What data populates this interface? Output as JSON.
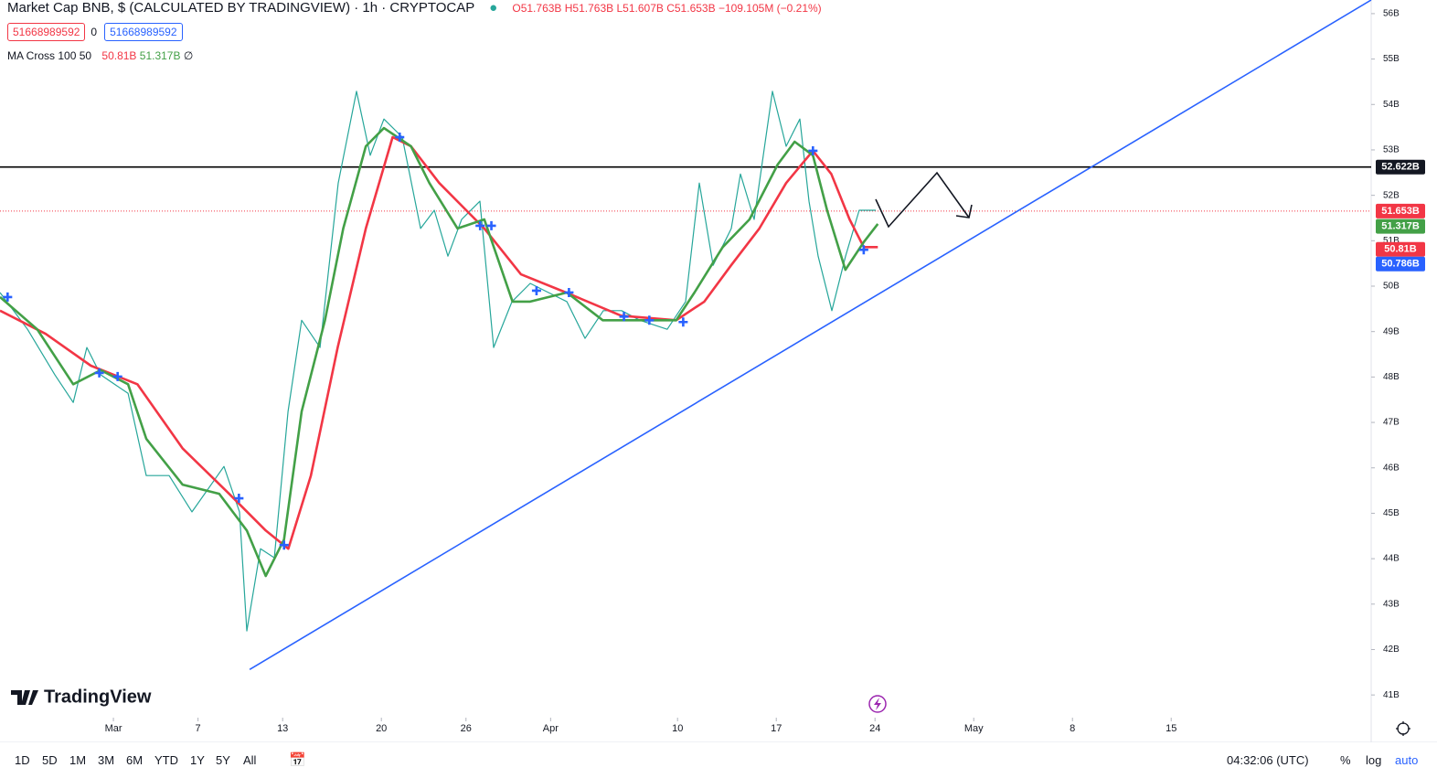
{
  "header": {
    "title": "Market Cap BNB, $ (CALCULATED BY TRADINGVIEW) · 1h · CRYPTOCAP",
    "ohlc": [
      "O51.763B",
      "H51.763B",
      "L51.607B",
      "C51.653B",
      "−109.105M (−0.21%)"
    ],
    "boxes": [
      "51668989592",
      "0",
      "51668989592"
    ],
    "indicator": {
      "name": "MA Cross 100 50",
      "values": [
        "50.81B",
        "51.317B",
        "∅"
      ]
    },
    "logo": "TradingView"
  },
  "toolbar": {
    "ranges": [
      "1D",
      "5D",
      "1M",
      "3M",
      "6M",
      "YTD",
      "1Y",
      "5Y",
      "All"
    ],
    "clock": "04:32:06 (UTC)",
    "options": [
      "%",
      "log",
      "auto"
    ]
  },
  "chart_data": {
    "type": "line",
    "xlim": [
      -8.04,
      89.18
    ],
    "ylim": [
      40.5,
      56.3
    ],
    "xticks": [
      {
        "value": 0,
        "label": "Mar"
      },
      {
        "value": 6,
        "label": "7"
      },
      {
        "value": 12,
        "label": "13"
      },
      {
        "value": 19,
        "label": "20"
      },
      {
        "value": 25,
        "label": "26"
      },
      {
        "value": 31,
        "label": "Apr"
      },
      {
        "value": 40,
        "label": "10"
      },
      {
        "value": 47,
        "label": "17"
      },
      {
        "value": 54,
        "label": "24"
      },
      {
        "value": 61,
        "label": "May"
      },
      {
        "value": 68,
        "label": "8"
      },
      {
        "value": 75,
        "label": "15"
      }
    ],
    "yticks": [
      {
        "value": 56,
        "label": "56B"
      },
      {
        "value": 55,
        "label": "55B"
      },
      {
        "value": 54,
        "label": "54B"
      },
      {
        "value": 53,
        "label": "53B"
      },
      {
        "value": 52,
        "label": "52B"
      },
      {
        "value": 51,
        "label": "51B"
      },
      {
        "value": 50,
        "label": "50B"
      },
      {
        "value": 49,
        "label": "49B"
      },
      {
        "value": 48,
        "label": "48B"
      },
      {
        "value": 47,
        "label": "47B"
      },
      {
        "value": 46,
        "label": "46B"
      },
      {
        "value": 45,
        "label": "45B"
      },
      {
        "value": 44,
        "label": "44B"
      },
      {
        "value": 43,
        "label": "43B"
      },
      {
        "value": 42,
        "label": "42B"
      },
      {
        "value": 41,
        "label": "41B"
      }
    ],
    "series": [
      {
        "color": "#26a69a",
        "x": [
          -8.04,
          -6.09,
          -4.15,
          -2.85,
          -1.88,
          -0.91,
          1.04,
          2.33,
          3.95,
          5.57,
          7.84,
          8.94,
          9.46,
          10.43,
          11.41,
          12.38,
          13.35,
          14.65,
          15.94,
          17.24,
          18.21,
          19.18,
          20.48,
          21.78,
          22.75,
          23.72,
          24.69,
          25.99,
          26.96,
          28.26,
          29.55,
          30.85,
          32.15,
          33.44,
          34.74,
          36.03,
          37.33,
          39.27,
          40.57,
          41.54,
          42.52,
          43.81,
          44.46,
          45.43,
          46.73,
          47.7,
          48.67,
          49.32,
          49.97,
          50.94,
          51.91,
          52.88,
          54.05
        ],
        "values": [
          49.86,
          49.05,
          48.05,
          47.44,
          48.65,
          48.05,
          47.64,
          45.83,
          45.83,
          45.03,
          46.03,
          45.03,
          42.41,
          44.22,
          44.02,
          47.24,
          49.25,
          48.65,
          52.27,
          54.29,
          52.88,
          53.68,
          53.28,
          51.27,
          51.67,
          50.66,
          51.47,
          51.87,
          48.65,
          49.66,
          50.06,
          49.86,
          49.66,
          48.85,
          49.46,
          49.46,
          49.25,
          49.05,
          49.66,
          52.27,
          50.46,
          51.27,
          52.47,
          51.47,
          54.29,
          53.08,
          53.68,
          51.87,
          50.66,
          49.46,
          50.66,
          51.67,
          51.67
        ]
      },
      {
        "color": "#f23645",
        "x": [
          -8.04,
          -4.8,
          -1.6,
          1.7,
          4.9,
          8.2,
          10.8,
          12.4,
          14.0,
          15.9,
          17.9,
          19.8,
          21.1,
          23.1,
          26.3,
          28.9,
          32.1,
          36.0,
          39.9,
          41.9,
          43.8,
          45.8,
          47.7,
          49.6,
          50.9,
          52.2,
          53.2,
          54.2
        ],
        "values": [
          49.46,
          48.95,
          48.25,
          47.84,
          46.43,
          45.43,
          44.62,
          44.22,
          45.83,
          48.65,
          51.27,
          53.28,
          53.08,
          52.27,
          51.27,
          50.26,
          49.86,
          49.35,
          49.25,
          49.66,
          50.46,
          51.27,
          52.27,
          52.98,
          52.47,
          51.47,
          50.86,
          50.86
        ]
      },
      {
        "color": "#43a047",
        "x": [
          -8.04,
          -5.4,
          -2.85,
          -0.9,
          1.04,
          2.33,
          4.9,
          7.5,
          9.46,
          10.8,
          12.1,
          13.35,
          15.0,
          16.3,
          17.9,
          19.18,
          21.1,
          22.4,
          24.4,
          26.3,
          28.3,
          29.55,
          32.15,
          34.7,
          37.3,
          39.9,
          41.2,
          43.2,
          45.1,
          47.1,
          48.3,
          49.6,
          50.6,
          51.9,
          53.2,
          54.2
        ],
        "values": [
          49.76,
          49.05,
          47.84,
          48.15,
          47.84,
          46.64,
          45.63,
          45.43,
          44.62,
          43.62,
          44.42,
          47.24,
          49.25,
          51.27,
          53.08,
          53.48,
          53.08,
          52.27,
          51.27,
          51.47,
          49.66,
          49.66,
          49.86,
          49.25,
          49.25,
          49.25,
          49.86,
          50.86,
          51.47,
          52.68,
          53.18,
          52.88,
          51.67,
          50.36,
          50.97,
          51.37
        ]
      }
    ],
    "crosses": {
      "color": "#2962ff",
      "x": [
        -7.5,
        -1.0,
        0.3,
        8.9,
        12.1,
        20.3,
        26.0,
        26.8,
        30.0,
        32.3,
        36.2,
        38.0,
        40.4,
        49.6,
        53.2
      ],
      "values": [
        49.76,
        48.09,
        48.01,
        45.33,
        44.3,
        53.28,
        51.33,
        51.33,
        49.9,
        49.86,
        49.33,
        49.25,
        49.21,
        52.98,
        50.8
      ]
    },
    "trendline": {
      "color": "#2962ff",
      "x": [
        9.66,
        89.18
      ],
      "values": [
        41.56,
        56.3
      ]
    },
    "level": {
      "color": "#000000",
      "value": 52.622
    },
    "last_price": {
      "color": "#f23645",
      "value": 51.653
    },
    "price_labels": [
      {
        "value": 52.622,
        "label": "52.622B",
        "color": "#131722"
      },
      {
        "value": 51.653,
        "label": "51.653B",
        "color": "#f23645"
      },
      {
        "value": 51.317,
        "label": "51.317B",
        "color": "#43a047"
      },
      {
        "value": 50.81,
        "label": "50.81B",
        "color": "#f23645"
      },
      {
        "value": 50.786,
        "label": "50.786B",
        "color": "#2962ff"
      }
    ]
  }
}
